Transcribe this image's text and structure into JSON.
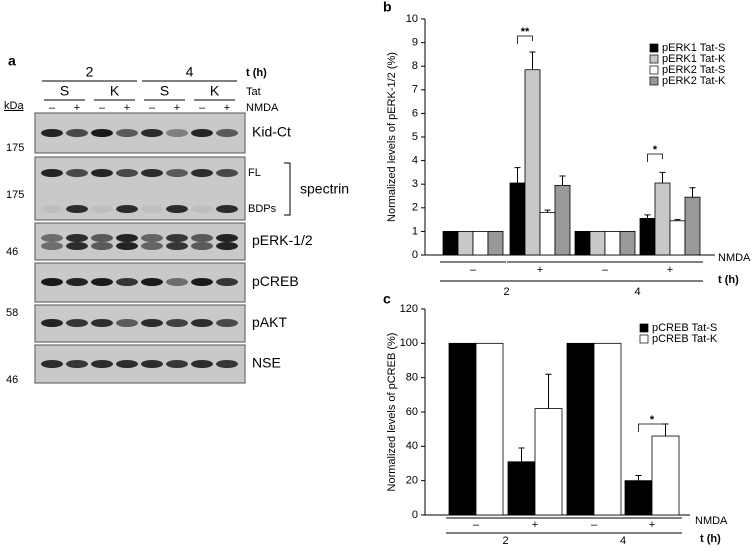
{
  "blot": {
    "panel": "a",
    "time_label": "t (h)",
    "times": [
      "2",
      "4"
    ],
    "tat_label": "Tat",
    "tats": [
      "S",
      "K",
      "S",
      "K"
    ],
    "nmda_label": "NMDA",
    "nmda": [
      "–",
      "+",
      "–",
      "+",
      "–",
      "+",
      "–",
      "+"
    ],
    "kda_label": "kDa",
    "markers": [
      "175",
      "175",
      "46",
      "58",
      "46"
    ],
    "rows": [
      "Kid-Ct",
      "spectrin",
      "pERK-1/2",
      "pCREB",
      "pAKT",
      "NSE"
    ],
    "spectrin_bands": [
      "FL",
      "BDPs"
    ]
  },
  "chart_data": [
    {
      "type": "bar",
      "panel": "b",
      "y_label": "Normalized levels of pERK-1/2 (%)",
      "categories": [
        "–",
        "+",
        "–",
        "+"
      ],
      "x_label": "NMDA",
      "groups": [
        "2",
        "4"
      ],
      "group_label": "t (h)",
      "ylim": [
        0,
        10
      ],
      "yticks": [
        0,
        1,
        2,
        3,
        4,
        5,
        6,
        7,
        8,
        9,
        10
      ],
      "series": [
        {
          "name": "pERK1 Tat-S",
          "color": "#000000",
          "values": [
            1,
            3.05,
            1,
            1.55
          ],
          "errors": [
            0,
            0.65,
            0,
            0.15
          ]
        },
        {
          "name": "pERK1 Tat-K",
          "color": "#c8c8c8",
          "values": [
            1,
            7.85,
            1,
            3.05
          ],
          "errors": [
            0,
            0.75,
            0,
            0.45
          ]
        },
        {
          "name": "pERK2 Tat-S",
          "color": "#ffffff",
          "values": [
            1,
            1.8,
            1,
            1.45
          ],
          "errors": [
            0,
            0.1,
            0,
            0.05
          ]
        },
        {
          "name": "pERK2 Tat-K",
          "color": "#999999",
          "values": [
            1,
            2.95,
            1,
            2.45
          ],
          "errors": [
            0,
            0.4,
            0,
            0.4
          ]
        }
      ],
      "annotations": [
        "**",
        "*"
      ]
    },
    {
      "type": "bar",
      "panel": "c",
      "y_label": "Normalized levels of pCREB (%)",
      "categories": [
        "–",
        "+",
        "–",
        "+"
      ],
      "x_label": "NMDA",
      "groups": [
        "2",
        "4"
      ],
      "group_label": "t (h)",
      "ylim": [
        0,
        120
      ],
      "yticks": [
        0,
        20,
        40,
        60,
        80,
        100,
        120
      ],
      "series": [
        {
          "name": "pCREB Tat-S",
          "color": "#000000",
          "values": [
            100,
            31,
            100,
            20
          ],
          "errors": [
            0,
            8,
            0,
            3
          ]
        },
        {
          "name": "pCREB Tat-K",
          "color": "#ffffff",
          "values": [
            100,
            62,
            100,
            46
          ],
          "errors": [
            0,
            20,
            0,
            7
          ]
        }
      ],
      "annotations": [
        "*"
      ]
    }
  ]
}
